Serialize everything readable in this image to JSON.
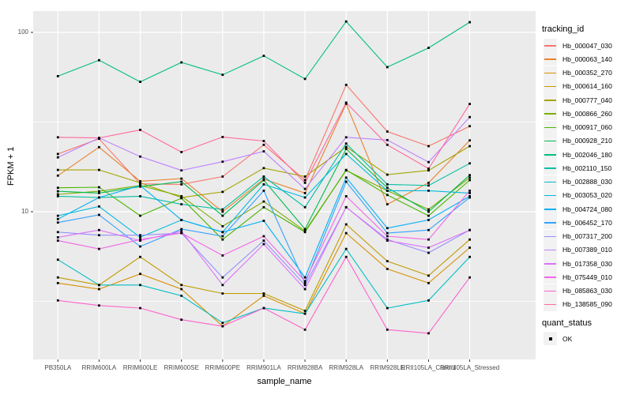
{
  "figure": {
    "background": "#FFFFFF",
    "panel_background": "#EBEBEB",
    "grid_color": "#FFFFFF",
    "tick_text_color": "#4D4D4D",
    "point_color": "#000000"
  },
  "chart_data": {
    "type": "line",
    "title": "",
    "xlabel": "sample_name",
    "ylabel": "FPKM + 1",
    "yscale": "log10",
    "ylim": [
      1.5,
      135
    ],
    "yticks": [
      100,
      10
    ],
    "minor_gridlines_y": [
      31.62,
      3.162
    ],
    "grid": true,
    "marker": "black-square",
    "legend_title": "tracking_id",
    "legend_position": "right",
    "legend2": {
      "title": "quant_status",
      "items": [
        "OK"
      ]
    },
    "categories": [
      "PB350LA",
      "RRIM600LA",
      "RRIM600LE",
      "RRIM600SE",
      "RRIM600PE",
      "RRIM901LA",
      "RRIM928BA",
      "RRIM928LA",
      "RRIM928LE",
      "RRII105LA_Control",
      "RRII105LA_Stressed"
    ],
    "series": [
      {
        "name": "Hb_000047_030",
        "color": "#F8766D",
        "values": [
          21.0,
          25.5,
          14.3,
          14.2,
          15.7,
          23.6,
          15.0,
          51.0,
          28.0,
          23.2,
          30.0
        ]
      },
      {
        "name": "Hb_000063_140",
        "color": "#EA8331",
        "values": [
          15.9,
          22.9,
          14.8,
          15.3,
          10.0,
          15.2,
          12.7,
          40.0,
          11.0,
          14.5,
          25.0
        ]
      },
      {
        "name": "Hb_000352_270",
        "color": "#D89000",
        "values": [
          4.0,
          3.7,
          4.5,
          3.7,
          2.3,
          3.4,
          2.7,
          7.6,
          4.8,
          4.0,
          6.3
        ]
      },
      {
        "name": "Hb_000614_160",
        "color": "#C09B00",
        "values": [
          4.3,
          3.9,
          5.6,
          3.9,
          3.5,
          3.5,
          2.8,
          8.5,
          5.3,
          4.4,
          7.0
        ]
      },
      {
        "name": "Hb_000777_040",
        "color": "#A3A500",
        "values": [
          17.1,
          17.1,
          14.5,
          12.0,
          12.9,
          17.5,
          15.7,
          23.0,
          16.1,
          17.0,
          23.2
        ]
      },
      {
        "name": "Hb_000866_260",
        "color": "#7CAE00",
        "values": [
          12.5,
          13.0,
          14.0,
          12.2,
          8.3,
          11.4,
          7.8,
          17.0,
          13.1,
          10.3,
          15.5
        ]
      },
      {
        "name": "Hb_000917_060",
        "color": "#49B500",
        "values": [
          13.6,
          13.7,
          9.5,
          11.9,
          7.0,
          10.6,
          7.7,
          17.1,
          12.4,
          9.5,
          15.0
        ]
      },
      {
        "name": "Hb_000928_210",
        "color": "#00BB4E",
        "values": [
          13.0,
          12.7,
          13.8,
          14.7,
          9.5,
          15.0,
          8.0,
          22.4,
          13.6,
          10.0,
          16.0
        ]
      },
      {
        "name": "Hb_002046_180",
        "color": "#00BF7D",
        "values": [
          57.0,
          70.0,
          53.0,
          68.0,
          58.0,
          74.0,
          55.0,
          115.0,
          64.0,
          82.0,
          114.0
        ]
      },
      {
        "name": "Hb_002110_150",
        "color": "#00C0A3",
        "values": [
          12.2,
          12.0,
          12.2,
          11.0,
          10.3,
          15.7,
          10.6,
          24.0,
          14.2,
          14.0,
          18.6
        ]
      },
      {
        "name": "Hb_002888_030",
        "color": "#00BFC4",
        "values": [
          5.4,
          3.9,
          3.9,
          3.4,
          2.4,
          2.9,
          2.7,
          6.2,
          2.9,
          3.2,
          5.6
        ]
      },
      {
        "name": "Hb_003053_020",
        "color": "#00BAE0",
        "values": [
          9.5,
          10.7,
          7.2,
          9.0,
          7.7,
          14.2,
          12.0,
          21.0,
          13.1,
          13.1,
          12.7
        ]
      },
      {
        "name": "Hb_004724_080",
        "color": "#00B0F6",
        "values": [
          9.1,
          12.0,
          14.0,
          9.0,
          7.7,
          8.9,
          4.3,
          15.5,
          8.1,
          9.0,
          12.2
        ]
      },
      {
        "name": "Hb_006452_170",
        "color": "#35A2FF",
        "values": [
          8.7,
          9.6,
          6.4,
          8.0,
          7.3,
          13.1,
          4.0,
          14.7,
          7.6,
          7.9,
          12.0
        ]
      },
      {
        "name": "Hb_007317_200",
        "color": "#9590FF",
        "values": [
          7.7,
          7.4,
          7.4,
          7.6,
          4.3,
          6.9,
          3.9,
          10.6,
          7.0,
          5.9,
          7.9
        ]
      },
      {
        "name": "Hb_007389_010",
        "color": "#BF80FF",
        "values": [
          20.1,
          25.8,
          20.3,
          17.0,
          19.0,
          21.7,
          13.4,
          26.0,
          25.1,
          18.9,
          33.7
        ]
      },
      {
        "name": "Hb_017358_030",
        "color": "#DC71FA",
        "values": [
          7.2,
          7.9,
          6.9,
          7.8,
          3.9,
          6.6,
          3.7,
          10.6,
          6.9,
          6.3,
          7.9
        ]
      },
      {
        "name": "Hb_075449_010",
        "color": "#F166E8",
        "values": [
          6.9,
          6.2,
          7.0,
          7.6,
          5.7,
          7.3,
          4.1,
          12.2,
          7.3,
          7.0,
          13.1
        ]
      },
      {
        "name": "Hb_085863_030",
        "color": "#FF61CC",
        "values": [
          3.2,
          3.0,
          2.9,
          2.5,
          2.3,
          2.9,
          2.2,
          5.6,
          2.2,
          2.1,
          4.3
        ]
      },
      {
        "name": "Hb_138585_090",
        "color": "#FF68A1",
        "values": [
          26.0,
          25.8,
          28.6,
          21.5,
          26.1,
          24.8,
          14.5,
          40.6,
          23.6,
          17.4,
          39.9
        ]
      }
    ]
  }
}
